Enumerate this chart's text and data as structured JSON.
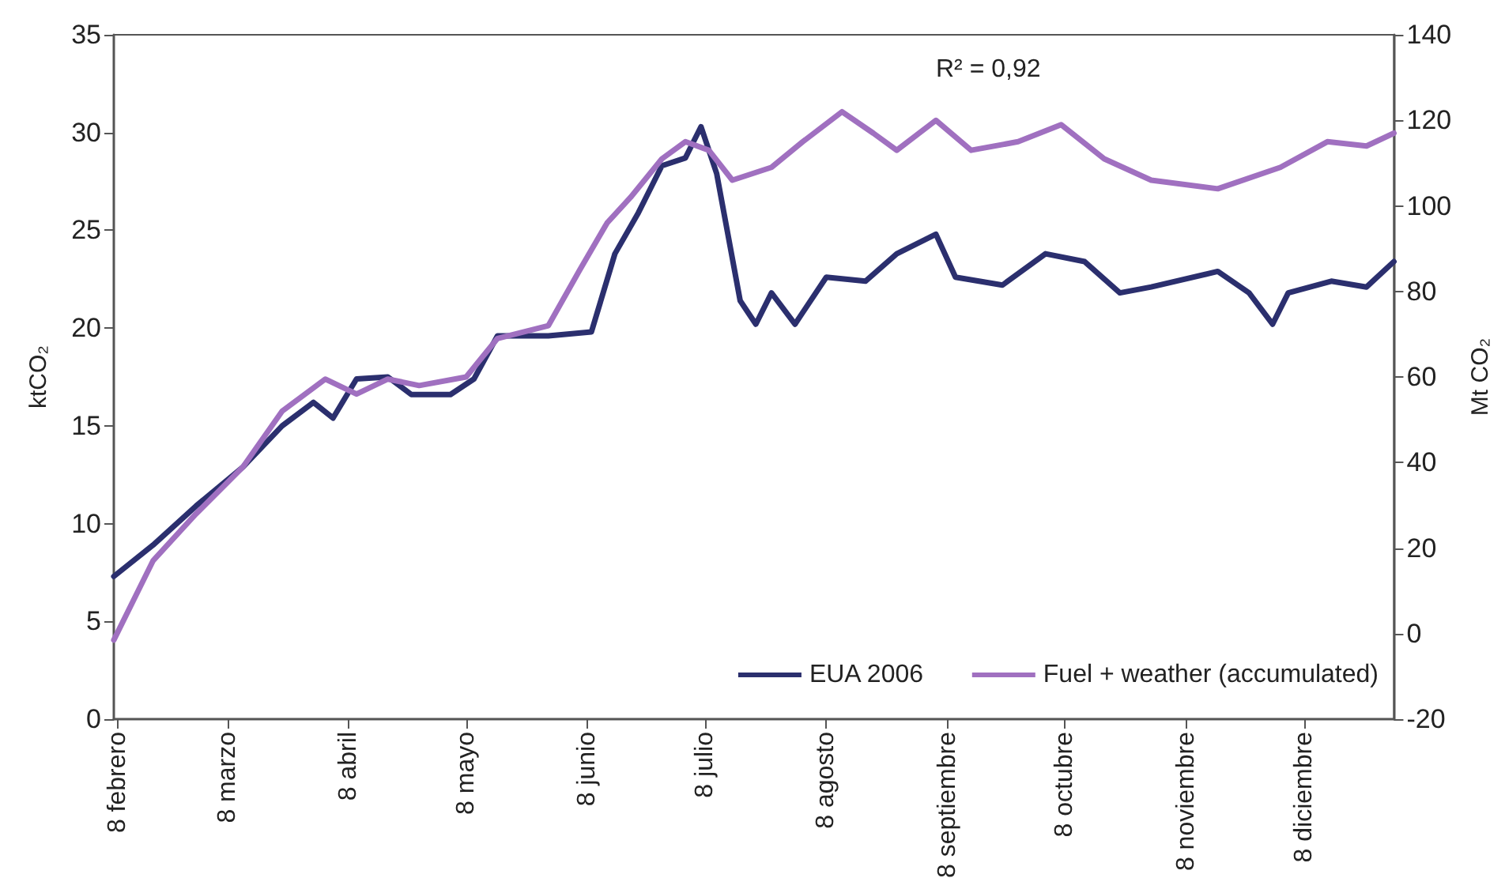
{
  "chart_data": {
    "type": "line",
    "ylabel": "ktCO₂",
    "y2label": "Mt CO₂",
    "annotations": [
      "R² = 0,92"
    ],
    "xlim": [
      "--02-07",
      "--12-31"
    ],
    "xticks": [
      {
        "value": "--02-08",
        "label": "8 febrero"
      },
      {
        "value": "--03-08",
        "label": "8 marzo"
      },
      {
        "value": "--04-08",
        "label": "8 abril"
      },
      {
        "value": "--05-08",
        "label": "8 mayo"
      },
      {
        "value": "--06-08",
        "label": "8 junio"
      },
      {
        "value": "--07-08",
        "label": "8 julio"
      },
      {
        "value": "--08-08",
        "label": "8 agosto"
      },
      {
        "value": "--09-08",
        "label": "8 septiembre"
      },
      {
        "value": "--10-08",
        "label": "8 octubre"
      },
      {
        "value": "--11-08",
        "label": "8 noviembre"
      },
      {
        "value": "--12-08",
        "label": "8 diciembre"
      }
    ],
    "ylim": [
      0,
      35
    ],
    "yticks": [
      0,
      5,
      10,
      15,
      20,
      25,
      30,
      35
    ],
    "y2lim": [
      -20,
      140
    ],
    "y2ticks": [
      -20,
      0,
      20,
      40,
      60,
      80,
      100,
      120,
      140
    ],
    "legend": "bottom right",
    "grid": false,
    "series": [
      {
        "name": "EUA 2006",
        "color": "#2b2f6e",
        "x": [
          "--02-07",
          "--02-17",
          "--02-28",
          "--03-12",
          "--03-22",
          "--03-30",
          "--04-04",
          "--04-10",
          "--04-18",
          "--04-24",
          "--05-04",
          "--05-10",
          "--05-16",
          "--05-29",
          "--06-09",
          "--06-15",
          "--06-21",
          "--06-27",
          "--07-03",
          "--07-07",
          "--07-11",
          "--07-17",
          "--07-21",
          "--07-25",
          "--07-31",
          "--08-08",
          "--08-18",
          "--08-26",
          "--09-05",
          "--09-10",
          "--09-22",
          "--10-03",
          "--10-13",
          "--10-22",
          "--10-30",
          "--11-16",
          "--11-24",
          "--11-30",
          "--12-04",
          "--12-15",
          "--12-24",
          "--12-31"
        ],
        "values": [
          7.3,
          8.9,
          10.9,
          12.9,
          15,
          16.2,
          15.4,
          17.4,
          17.5,
          16.6,
          16.6,
          17.4,
          19.6,
          19.6,
          19.8,
          23.8,
          25.9,
          28.3,
          28.7,
          30.3,
          27.9,
          21.4,
          20.2,
          21.8,
          20.2,
          22.6,
          22.4,
          23.8,
          24.8,
          22.6,
          22.2,
          23.8,
          23.4,
          21.8,
          22.1,
          22.9,
          21.8,
          20.2,
          21.8,
          22.4,
          22.1,
          23.4
        ]
      },
      {
        "name": "Fuel + weather (accumulated)",
        "color": "#a070c0",
        "axis": "y2",
        "x": [
          "--02-07",
          "--02-17",
          "--02-28",
          "--03-12",
          "--03-22",
          "--04-02",
          "--04-10",
          "--04-18",
          "--04-26",
          "--05-08",
          "--05-16",
          "--05-29",
          "--06-06",
          "--06-13",
          "--06-19",
          "--06-27",
          "--07-03",
          "--07-09",
          "--07-15",
          "--07-25",
          "--08-02",
          "--08-12",
          "--08-20",
          "--08-26",
          "--09-05",
          "--09-14",
          "--09-26",
          "--10-07",
          "--10-18",
          "--10-30",
          "--11-16",
          "--12-02",
          "--12-14",
          "--12-24",
          "--12-31"
        ],
        "values": [
          -1.5,
          17,
          28,
          39,
          52,
          59.5,
          56,
          59.5,
          58,
          60,
          69,
          72,
          85,
          96,
          102,
          111,
          115,
          113,
          106,
          109,
          115,
          122,
          117,
          113,
          120,
          113,
          115,
          119,
          111,
          106,
          104,
          109,
          115,
          114,
          117
        ]
      }
    ]
  }
}
